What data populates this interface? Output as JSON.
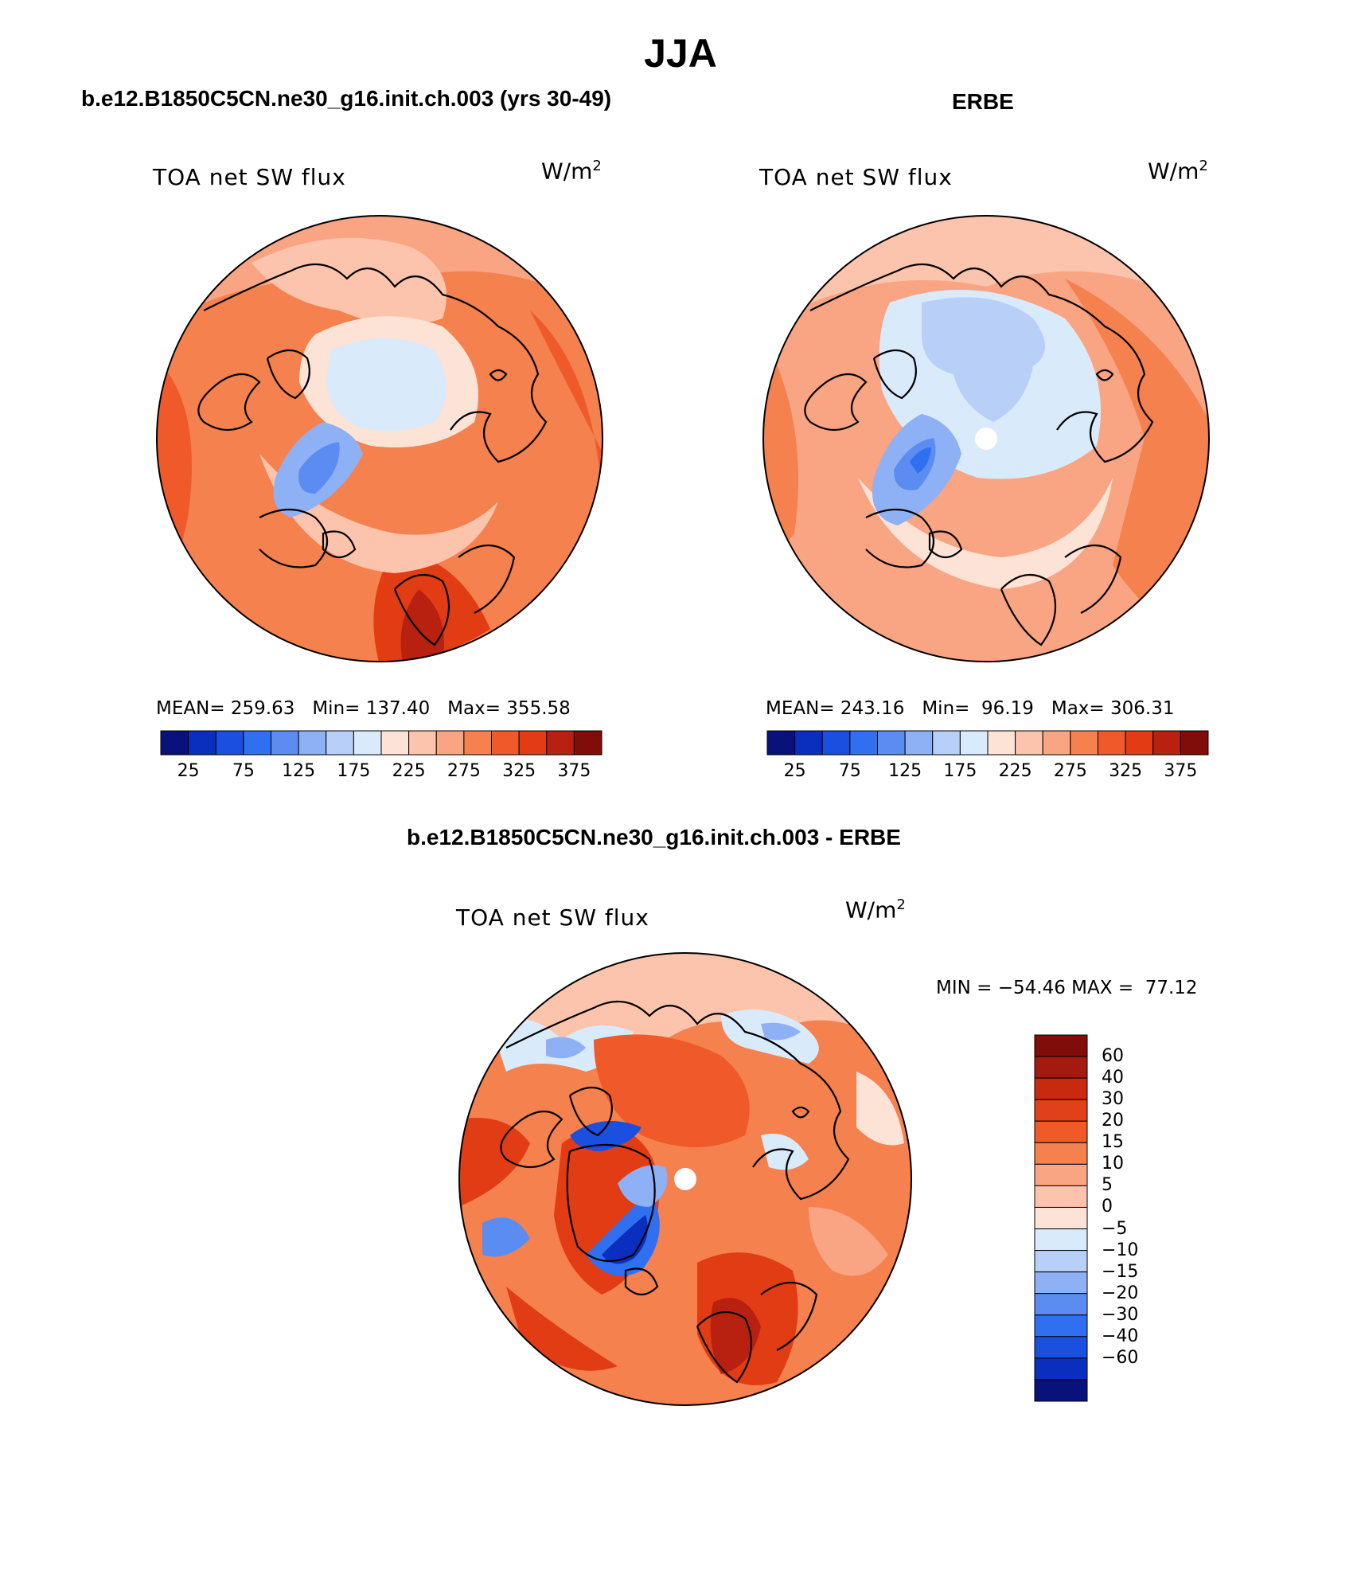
{
  "title": "JJA",
  "panels": {
    "model": {
      "header": "b.e12.B1850C5CN.ne30_g16.init.ch.003 (yrs 30-49)",
      "variable": "TOA net SW flux",
      "units_base": "W/m",
      "units_exp": "2",
      "mean_label": "MEAN=",
      "mean": "259.63",
      "min_label": "Min=",
      "min": "137.40",
      "max_label": "Max=",
      "max": "355.58"
    },
    "obs": {
      "header": "ERBE",
      "variable": "TOA net SW flux",
      "units_base": "W/m",
      "units_exp": "2",
      "mean_label": "MEAN=",
      "mean": "243.16",
      "min_label": "Min=",
      "min": "96.19",
      "max_label": "Max=",
      "max": "306.31"
    },
    "diff": {
      "header": "b.e12.B1850C5CN.ne30_g16.init.ch.003 - ERBE",
      "variable": "TOA net SW flux",
      "units_base": "W/m",
      "units_exp": "2",
      "min_label": "MIN =",
      "min": "−54.46",
      "max_label": "MAX =",
      "max": "77.12"
    }
  },
  "chart_data": [
    {
      "type": "map",
      "projection": "north polar stereographic",
      "title": "TOA net SW flux (model, JJA)",
      "units": "W/m^2",
      "colorbar": {
        "orientation": "horizontal",
        "colors": [
          "#08127a",
          "#0a2fbf",
          "#1a4fe0",
          "#2f6ff0",
          "#5a8cf2",
          "#8eb0f5",
          "#b8cff8",
          "#d9eafb",
          "#fde2d6",
          "#fcc4ad",
          "#f9a483",
          "#f5814f",
          "#f05a2a",
          "#e23c14",
          "#b82010",
          "#800d0a"
        ],
        "tick_labels": [
          "25",
          "75",
          "125",
          "175",
          "225",
          "275",
          "325",
          "375"
        ]
      },
      "stats": {
        "mean": 259.63,
        "min": 137.4,
        "max": 355.58
      }
    },
    {
      "type": "map",
      "projection": "north polar stereographic",
      "title": "TOA net SW flux (ERBE, JJA)",
      "units": "W/m^2",
      "colorbar": {
        "orientation": "horizontal",
        "colors": [
          "#08127a",
          "#0a2fbf",
          "#1a4fe0",
          "#2f6ff0",
          "#5a8cf2",
          "#8eb0f5",
          "#b8cff8",
          "#d9eafb",
          "#fde2d6",
          "#fcc4ad",
          "#f9a483",
          "#f5814f",
          "#f05a2a",
          "#e23c14",
          "#b82010",
          "#800d0a"
        ],
        "tick_labels": [
          "25",
          "75",
          "125",
          "175",
          "225",
          "275",
          "325",
          "375"
        ]
      },
      "stats": {
        "mean": 243.16,
        "min": 96.19,
        "max": 306.31
      }
    },
    {
      "type": "map",
      "projection": "north polar stereographic",
      "title": "TOA net SW flux difference (model - ERBE)",
      "units": "W/m^2",
      "colorbar": {
        "orientation": "vertical",
        "colors_top_to_bottom": [
          "#800d0a",
          "#a51a0e",
          "#c82a10",
          "#e0401a",
          "#f05a2a",
          "#f5814f",
          "#f9a483",
          "#fcc4ad",
          "#fde2d6",
          "#d9eafb",
          "#b8cff8",
          "#8eb0f5",
          "#5a8cf2",
          "#2f6ff0",
          "#1a4fe0",
          "#0a2fbf",
          "#08127a"
        ],
        "tick_labels_top_to_bottom": [
          "60",
          "40",
          "30",
          "20",
          "15",
          "10",
          "5",
          "0",
          "−5",
          "−10",
          "−15",
          "−20",
          "−30",
          "−40",
          "−60"
        ]
      },
      "stats": {
        "min": -54.46,
        "max": 77.12
      }
    }
  ]
}
